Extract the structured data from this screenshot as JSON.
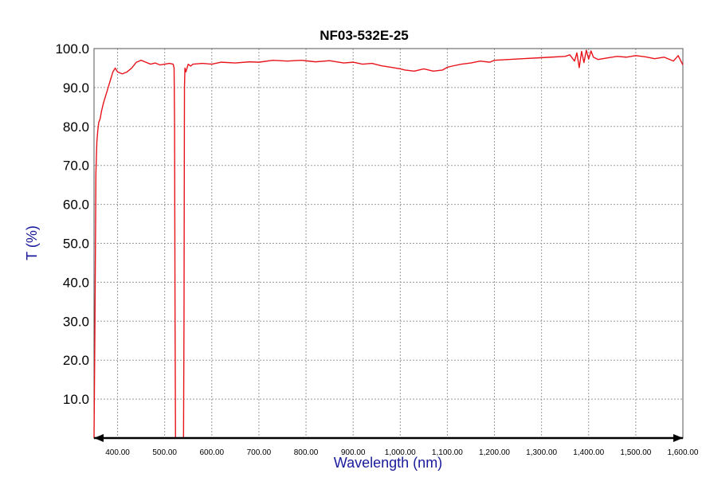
{
  "chart_data": {
    "type": "line",
    "title": "NF03-532E-25",
    "xlabel": "Wavelength (nm)",
    "ylabel": "T  (%)",
    "xlim": [
      350,
      1600
    ],
    "ylim": [
      0,
      100
    ],
    "grid": true,
    "y_ticks": [
      10,
      20,
      30,
      40,
      50,
      60,
      70,
      80,
      90,
      100
    ],
    "y_tick_labels": [
      "10.0",
      "20.0",
      "30.0",
      "40.0",
      "50.0",
      "60.0",
      "70.0",
      "80.0",
      "90.0",
      "100.0"
    ],
    "x_ticks": [
      400,
      500,
      600,
      700,
      800,
      900,
      1000,
      1100,
      1200,
      1300,
      1400,
      1500,
      1600
    ],
    "x_tick_labels": [
      "400.00",
      "500.00",
      "600.00",
      "700.00",
      "800.00",
      "900.00",
      "1,000.00",
      "1,100.00",
      "1,200.00",
      "1,300.00",
      "1,400.00",
      "1,500.00",
      "1,600.00"
    ],
    "colors": {
      "series": "#e8141c",
      "ylabel": "#1a1a9c",
      "xlabel": "#1a1a9c",
      "grid": "#9a9a9a",
      "frame": "#000000"
    },
    "series": [
      {
        "x": [
          350,
          352,
          354,
          356,
          358,
          360,
          363,
          366,
          370,
          375,
          380,
          385,
          390,
          395,
          400,
          410,
          420,
          430,
          440,
          450,
          460,
          470,
          480,
          490,
          500,
          510,
          518,
          520,
          521,
          522,
          523,
          524,
          525,
          527,
          530,
          535,
          538,
          539,
          540,
          541,
          542,
          543,
          545,
          550,
          555,
          560,
          580,
          600,
          620,
          650,
          680,
          700,
          730,
          760,
          790,
          820,
          850,
          880,
          900,
          920,
          940,
          960,
          980,
          1000,
          1010,
          1030,
          1050,
          1070,
          1090,
          1100,
          1110,
          1130,
          1150,
          1170,
          1190,
          1200,
          1230,
          1260,
          1290,
          1320,
          1350,
          1360,
          1370,
          1375,
          1380,
          1385,
          1390,
          1395,
          1400,
          1405,
          1410,
          1420,
          1440,
          1460,
          1480,
          1500,
          1520,
          1540,
          1560,
          1580,
          1590,
          1600
        ],
        "y": [
          0,
          30,
          68,
          76,
          79,
          81,
          82,
          84,
          86,
          88,
          90,
          92,
          94,
          95,
          94,
          93.5,
          94,
          95,
          96.5,
          97,
          96.5,
          96,
          96.3,
          95.8,
          96,
          96.2,
          96,
          95,
          80,
          30,
          0,
          0,
          0,
          0,
          0,
          0,
          0,
          0,
          0,
          30,
          90,
          95,
          94,
          96,
          95.5,
          96,
          96.2,
          96,
          96.5,
          96.3,
          96.6,
          96.5,
          97,
          96.8,
          97,
          96.6,
          96.9,
          96.3,
          96.5,
          96.0,
          96.2,
          95.6,
          95.2,
          94.8,
          94.5,
          94.2,
          94.8,
          94.2,
          94.5,
          95.2,
          95.5,
          96,
          96.3,
          96.8,
          96.5,
          97,
          97.2,
          97.4,
          97.6,
          97.8,
          98,
          98.4,
          96.8,
          98.9,
          95.1,
          99.3,
          96.4,
          99.6,
          97.3,
          99.4,
          97.8,
          97.2,
          97.6,
          98,
          97.8,
          98.2,
          97.9,
          97.4,
          97.8,
          96.8,
          98.2,
          95.8
        ]
      }
    ]
  }
}
